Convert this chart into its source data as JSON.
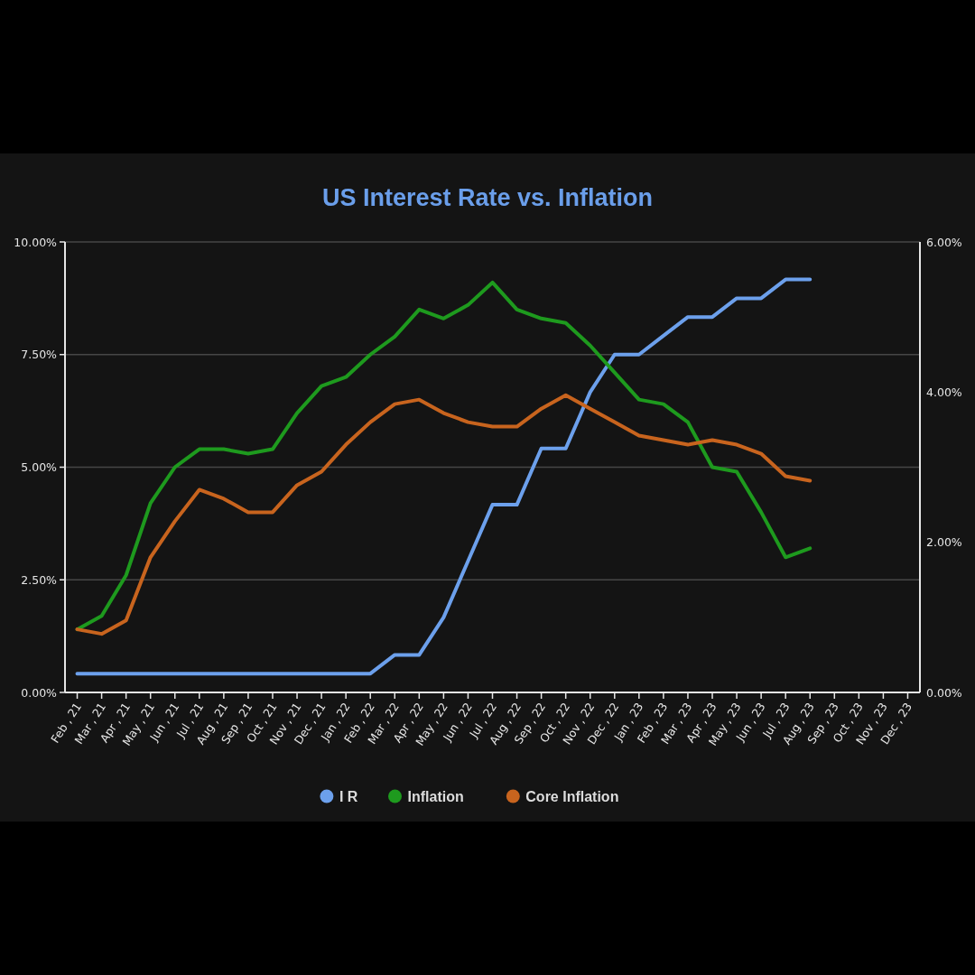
{
  "chart_data": {
    "type": "line",
    "title": "US Interest Rate vs. Inflation",
    "categories": [
      "Feb , 21",
      "Mar , 21",
      "Apr , 21",
      "May , 21",
      "Jun , 21",
      "Jul , 21",
      "Aug , 21",
      "Sep , 21",
      "Oct , 21",
      "Nov , 21",
      "Dec , 21",
      "Jan , 22",
      "Feb , 22",
      "Mar , 22",
      "Apr , 22",
      "May , 22",
      "Jun , 22",
      "Jul , 22",
      "Aug , 22",
      "Sep , 22",
      "Oct , 22",
      "Nov , 22",
      "Dec , 22",
      "Jan , 23",
      "Feb , 23",
      "Mar , 23",
      "Apr , 23",
      "May , 23",
      "Jun , 23",
      "Jul , 23",
      "Aug , 23",
      "Sep , 23",
      "Oct , 23",
      "Nov , 23",
      "Dec , 23"
    ],
    "series": [
      {
        "name": "I R",
        "color": "#6ca0ec",
        "axis": "y2",
        "values": [
          0.25,
          0.25,
          0.25,
          0.25,
          0.25,
          0.25,
          0.25,
          0.25,
          0.25,
          0.25,
          0.25,
          0.25,
          0.25,
          0.5,
          0.5,
          1.0,
          1.75,
          2.5,
          2.5,
          3.25,
          3.25,
          4.0,
          4.5,
          4.5,
          4.75,
          5.0,
          5.0,
          5.25,
          5.25,
          5.5,
          5.5,
          null,
          null,
          null,
          null
        ]
      },
      {
        "name": "Inflation",
        "color": "#1e9a1e",
        "values": [
          1.4,
          1.7,
          2.6,
          4.2,
          5.0,
          5.4,
          5.4,
          5.3,
          5.4,
          6.2,
          6.8,
          7.0,
          7.5,
          7.9,
          8.5,
          8.3,
          8.6,
          9.1,
          8.5,
          8.3,
          8.2,
          7.7,
          7.1,
          6.5,
          6.4,
          6.0,
          5.0,
          4.9,
          4.0,
          3.0,
          3.2,
          null,
          null,
          null,
          null
        ]
      },
      {
        "name": "Core Inflation",
        "color": "#c8641e",
        "values": [
          1.4,
          1.3,
          1.6,
          3.0,
          3.8,
          4.5,
          4.3,
          4.0,
          4.0,
          4.6,
          4.9,
          5.5,
          6.0,
          6.4,
          6.5,
          6.2,
          6.0,
          5.9,
          5.9,
          6.3,
          6.6,
          6.3,
          6.0,
          5.7,
          5.6,
          5.5,
          5.6,
          5.5,
          5.3,
          4.8,
          4.7,
          null,
          null,
          null,
          null
        ]
      }
    ],
    "ylim": [
      0,
      10
    ],
    "yticks": [
      {
        "value": 0,
        "label": "0.00%"
      },
      {
        "value": 2.5,
        "label": "2.50%"
      },
      {
        "value": 5,
        "label": "5.00%"
      },
      {
        "value": 7.5,
        "label": "7.50%"
      },
      {
        "value": 10,
        "label": "10.00%"
      }
    ],
    "y2lim": [
      0,
      6
    ],
    "y2ticks": [
      {
        "value": 0,
        "label": "0.00%"
      },
      {
        "value": 2,
        "label": "2.00%"
      },
      {
        "value": 4,
        "label": "4.00%"
      },
      {
        "value": 6,
        "label": "6.00%"
      }
    ],
    "grid": "y",
    "legend": "bottom"
  }
}
